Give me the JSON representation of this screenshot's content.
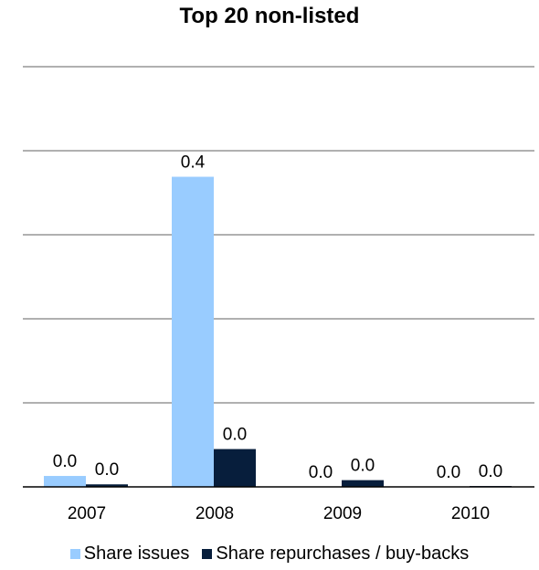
{
  "chart_data": {
    "type": "bar",
    "title": "Top 20 non-listed",
    "xlabel": "",
    "ylabel": "",
    "categories": [
      "2007",
      "2008",
      "2009",
      "2010"
    ],
    "ylim": [
      0,
      0.5
    ],
    "grid": true,
    "legend_position": "bottom",
    "series": [
      {
        "name": "Share issues",
        "color": "#99CCFF",
        "values": [
          0.013,
          0.369,
          0.0,
          0.0
        ],
        "labels": [
          "0.0",
          "0.4",
          "0.0",
          "0.0"
        ]
      },
      {
        "name": "Share repurchases / buy-backs",
        "color": "#071E3C",
        "values": [
          0.003,
          0.045,
          0.008,
          0.001
        ],
        "labels": [
          "0.0",
          "0.0",
          "0.0",
          "0.0"
        ]
      }
    ]
  }
}
